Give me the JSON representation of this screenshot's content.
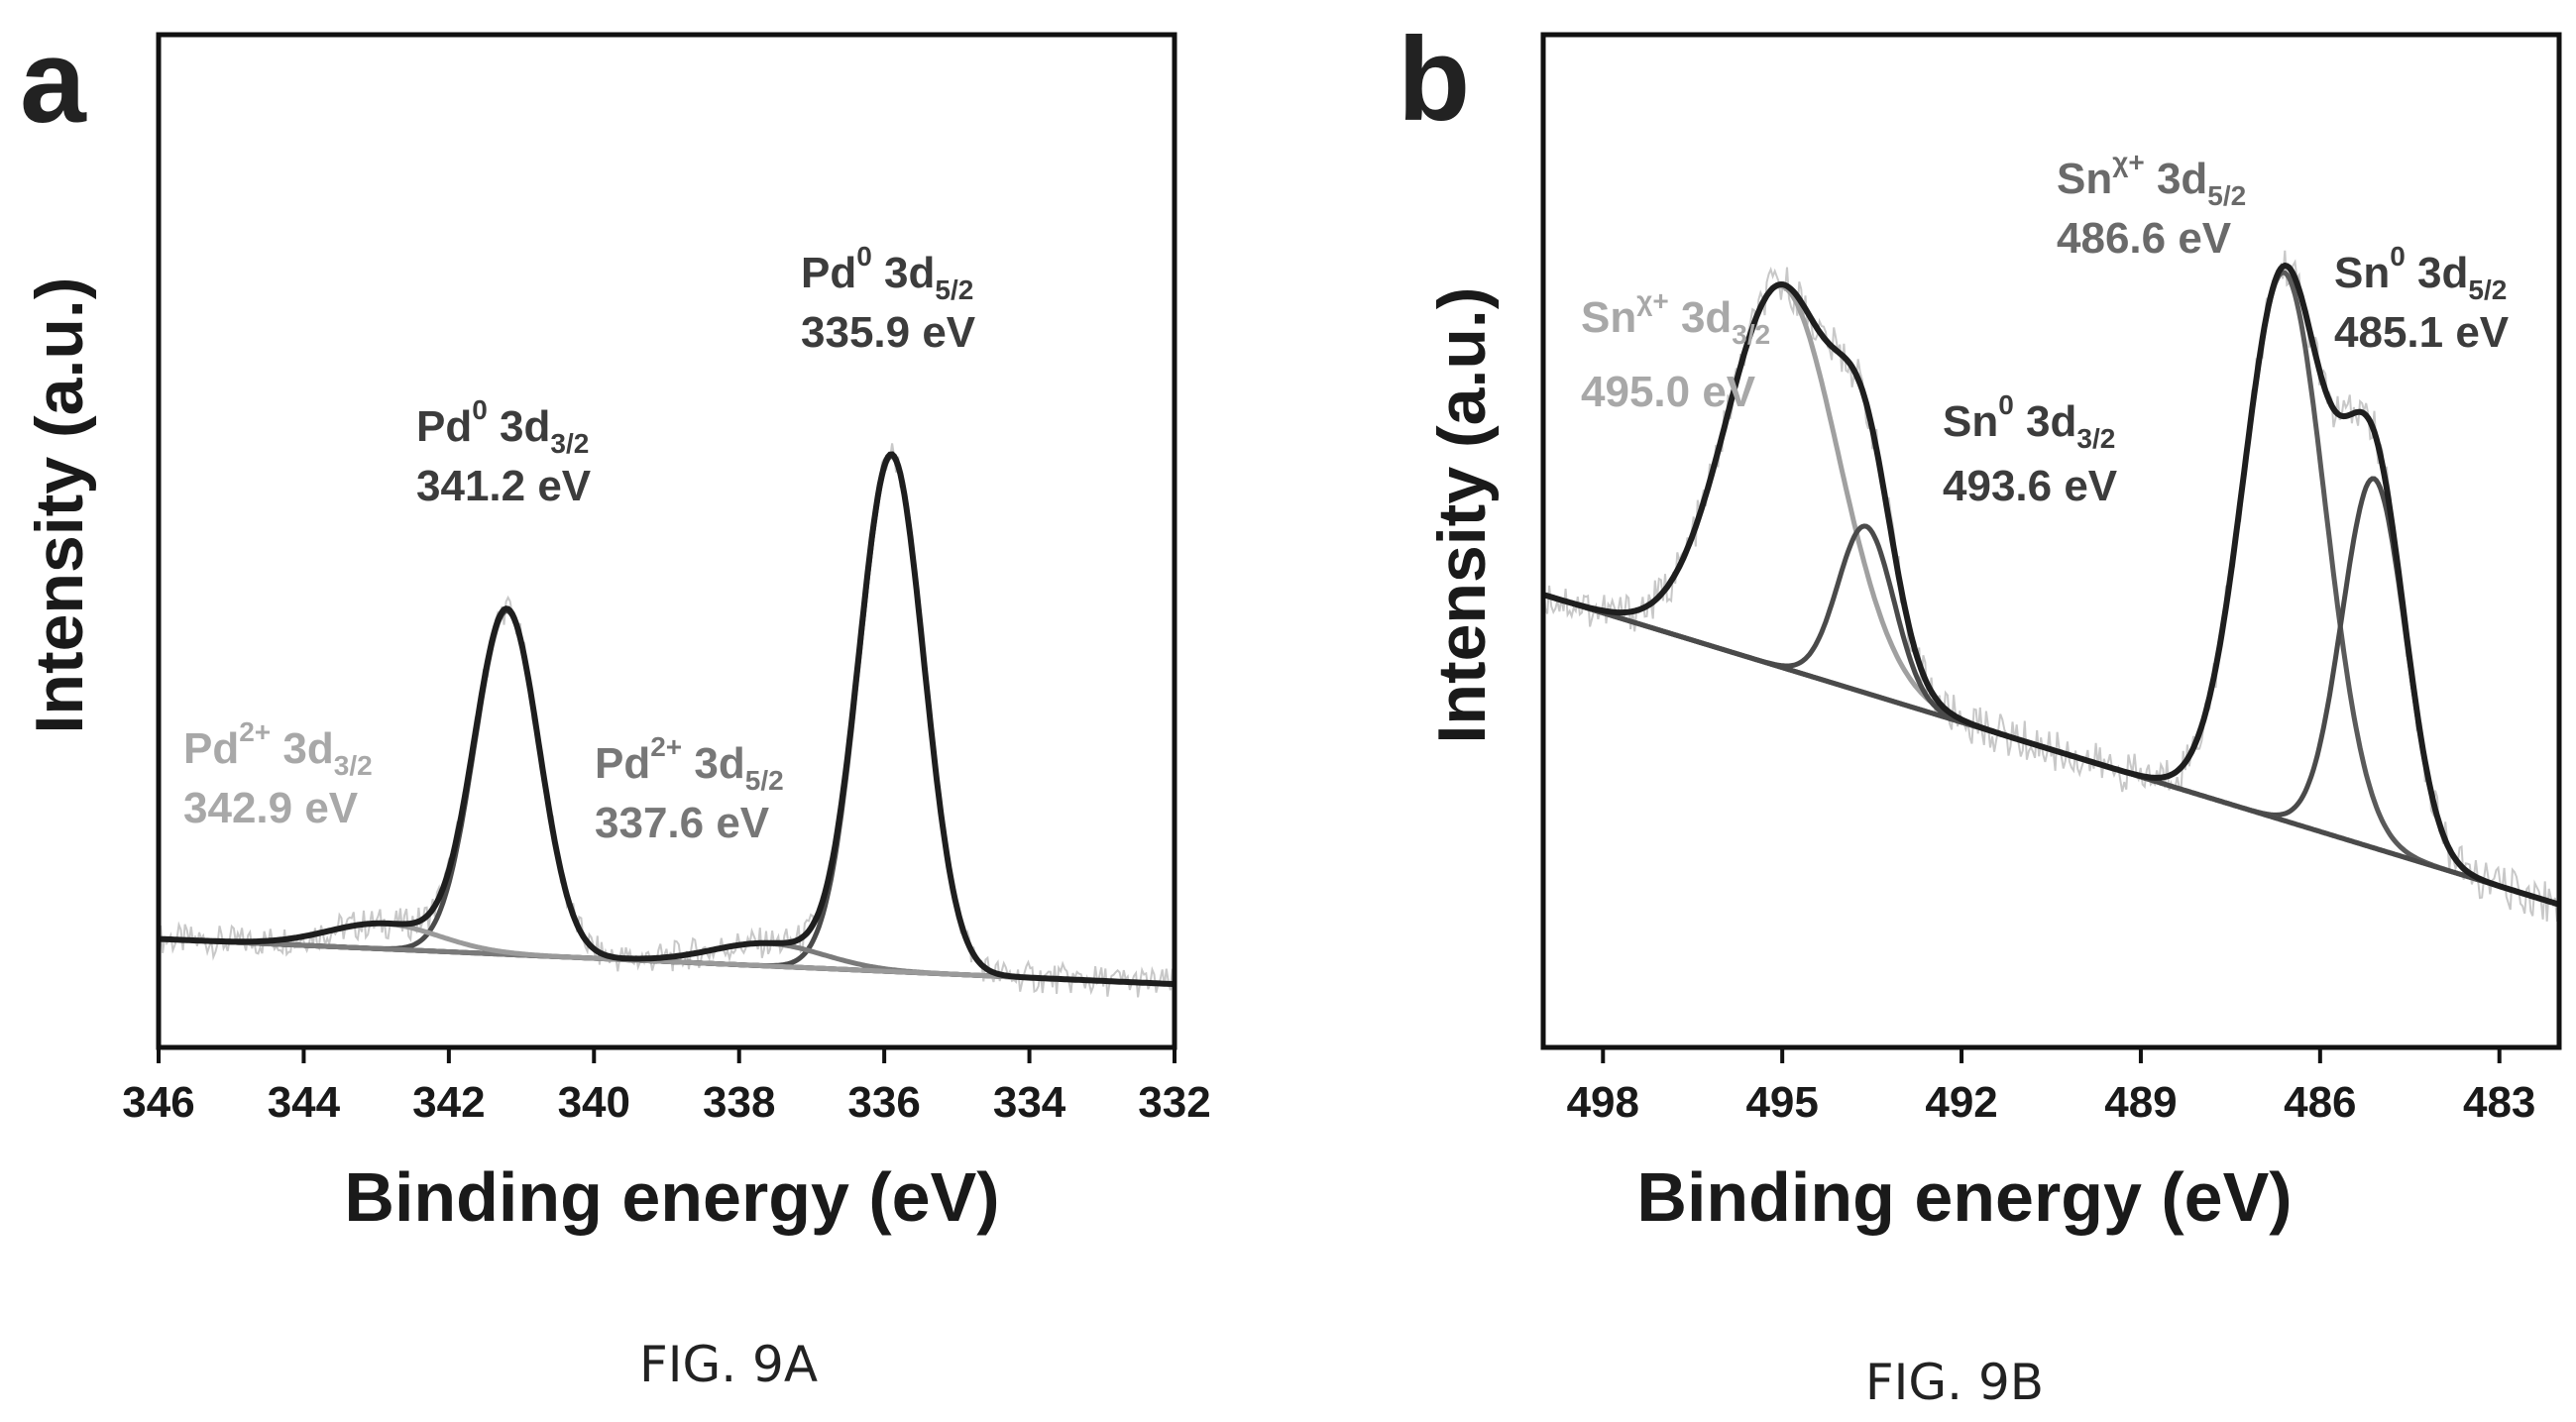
{
  "chart_data": [
    {
      "panel": "a",
      "type": "line",
      "caption": "FIG. 9A",
      "xlabel": "Binding energy (eV)",
      "ylabel": "Intensity (a.u.)",
      "xlim": [
        346,
        332
      ],
      "x_reversed": true,
      "ylim": [
        -0.12,
        1.0
      ],
      "y_tick_labels": false,
      "x_ticks": [
        346,
        344,
        342,
        340,
        338,
        336,
        334,
        332
      ],
      "baseline": {
        "start": [
          346,
          0.0
        ],
        "end": [
          332,
          -0.05
        ]
      },
      "components": [
        {
          "name": "Pd0 3d5/2",
          "center": 335.9,
          "amplitude": 0.57,
          "fwhm": 1.05,
          "color": "#4a4a4a"
        },
        {
          "name": "Pd0 3d3/2",
          "center": 341.2,
          "amplitude": 0.38,
          "fwhm": 1.05,
          "color": "#4a4a4a"
        },
        {
          "name": "Pd2+ 3d5/2",
          "center": 337.6,
          "amplitude": 0.025,
          "fwhm": 1.8,
          "color": "#7a7a7a"
        },
        {
          "name": "Pd2+ 3d3/2",
          "center": 342.9,
          "amplitude": 0.028,
          "fwhm": 1.8,
          "color": "#9a9a9a"
        }
      ],
      "annotations": [
        {
          "element": "Pd",
          "sup": "0",
          "orbital": "3d",
          "sub": "5/2",
          "energy": "335.9 eV",
          "color": "#3c3c3c"
        },
        {
          "element": "Pd",
          "sup": "0",
          "orbital": "3d",
          "sub": "3/2",
          "energy": "341.2 eV",
          "color": "#3c3c3c"
        },
        {
          "element": "Pd",
          "sup": "2+",
          "orbital": "3d",
          "sub": "5/2",
          "energy": "337.6 eV",
          "color": "#777777"
        },
        {
          "element": "Pd",
          "sup": "2+",
          "orbital": "3d",
          "sub": "3/2",
          "energy": "342.9 eV",
          "color": "#a8a8a8"
        }
      ]
    },
    {
      "panel": "b",
      "type": "line",
      "caption": "FIG. 9B",
      "xlabel": "Binding energy (eV)",
      "ylabel": "Intensity (a.u.)",
      "xlim": [
        499,
        482
      ],
      "x_reversed": true,
      "ylim": [
        0.15,
        1.0
      ],
      "y_tick_labels": false,
      "x_ticks": [
        498,
        495,
        492,
        489,
        486,
        483
      ],
      "baseline": {
        "start": [
          499,
          0.53
        ],
        "end": [
          482,
          0.27
        ]
      },
      "components": [
        {
          "name": "Snχ+ 3d5/2",
          "center": 486.6,
          "amplitude": 0.46,
          "fwhm": 1.6,
          "color": "#5a5a5a"
        },
        {
          "name": "Sn0 3d5/2",
          "center": 485.1,
          "amplitude": 0.31,
          "fwhm": 1.25,
          "color": "#4a4a4a"
        },
        {
          "name": "Snχ+ 3d3/2",
          "center": 495.0,
          "amplitude": 0.32,
          "fwhm": 2.2,
          "color": "#a0a0a0"
        },
        {
          "name": "Sn0 3d3/2",
          "center": 493.6,
          "amplitude": 0.14,
          "fwhm": 1.1,
          "color": "#4a4a4a"
        }
      ],
      "annotations": [
        {
          "element": "Sn",
          "sup": "χ+",
          "orbital": "3d",
          "sub": "5/2",
          "energy": "486.6 eV",
          "color": "#6a6a6a"
        },
        {
          "element": "Sn",
          "sup": "0",
          "orbital": "3d",
          "sub": "5/2",
          "energy": "485.1 eV",
          "color": "#3c3c3c"
        },
        {
          "element": "Sn",
          "sup": "χ+",
          "orbital": "3d",
          "sub": "3/2",
          "energy": "495.0 eV",
          "color": "#a8a8a8"
        },
        {
          "element": "Sn",
          "sup": "0",
          "orbital": "3d",
          "sub": "3/2",
          "energy": "493.6 eV",
          "color": "#3c3c3c"
        }
      ]
    }
  ]
}
